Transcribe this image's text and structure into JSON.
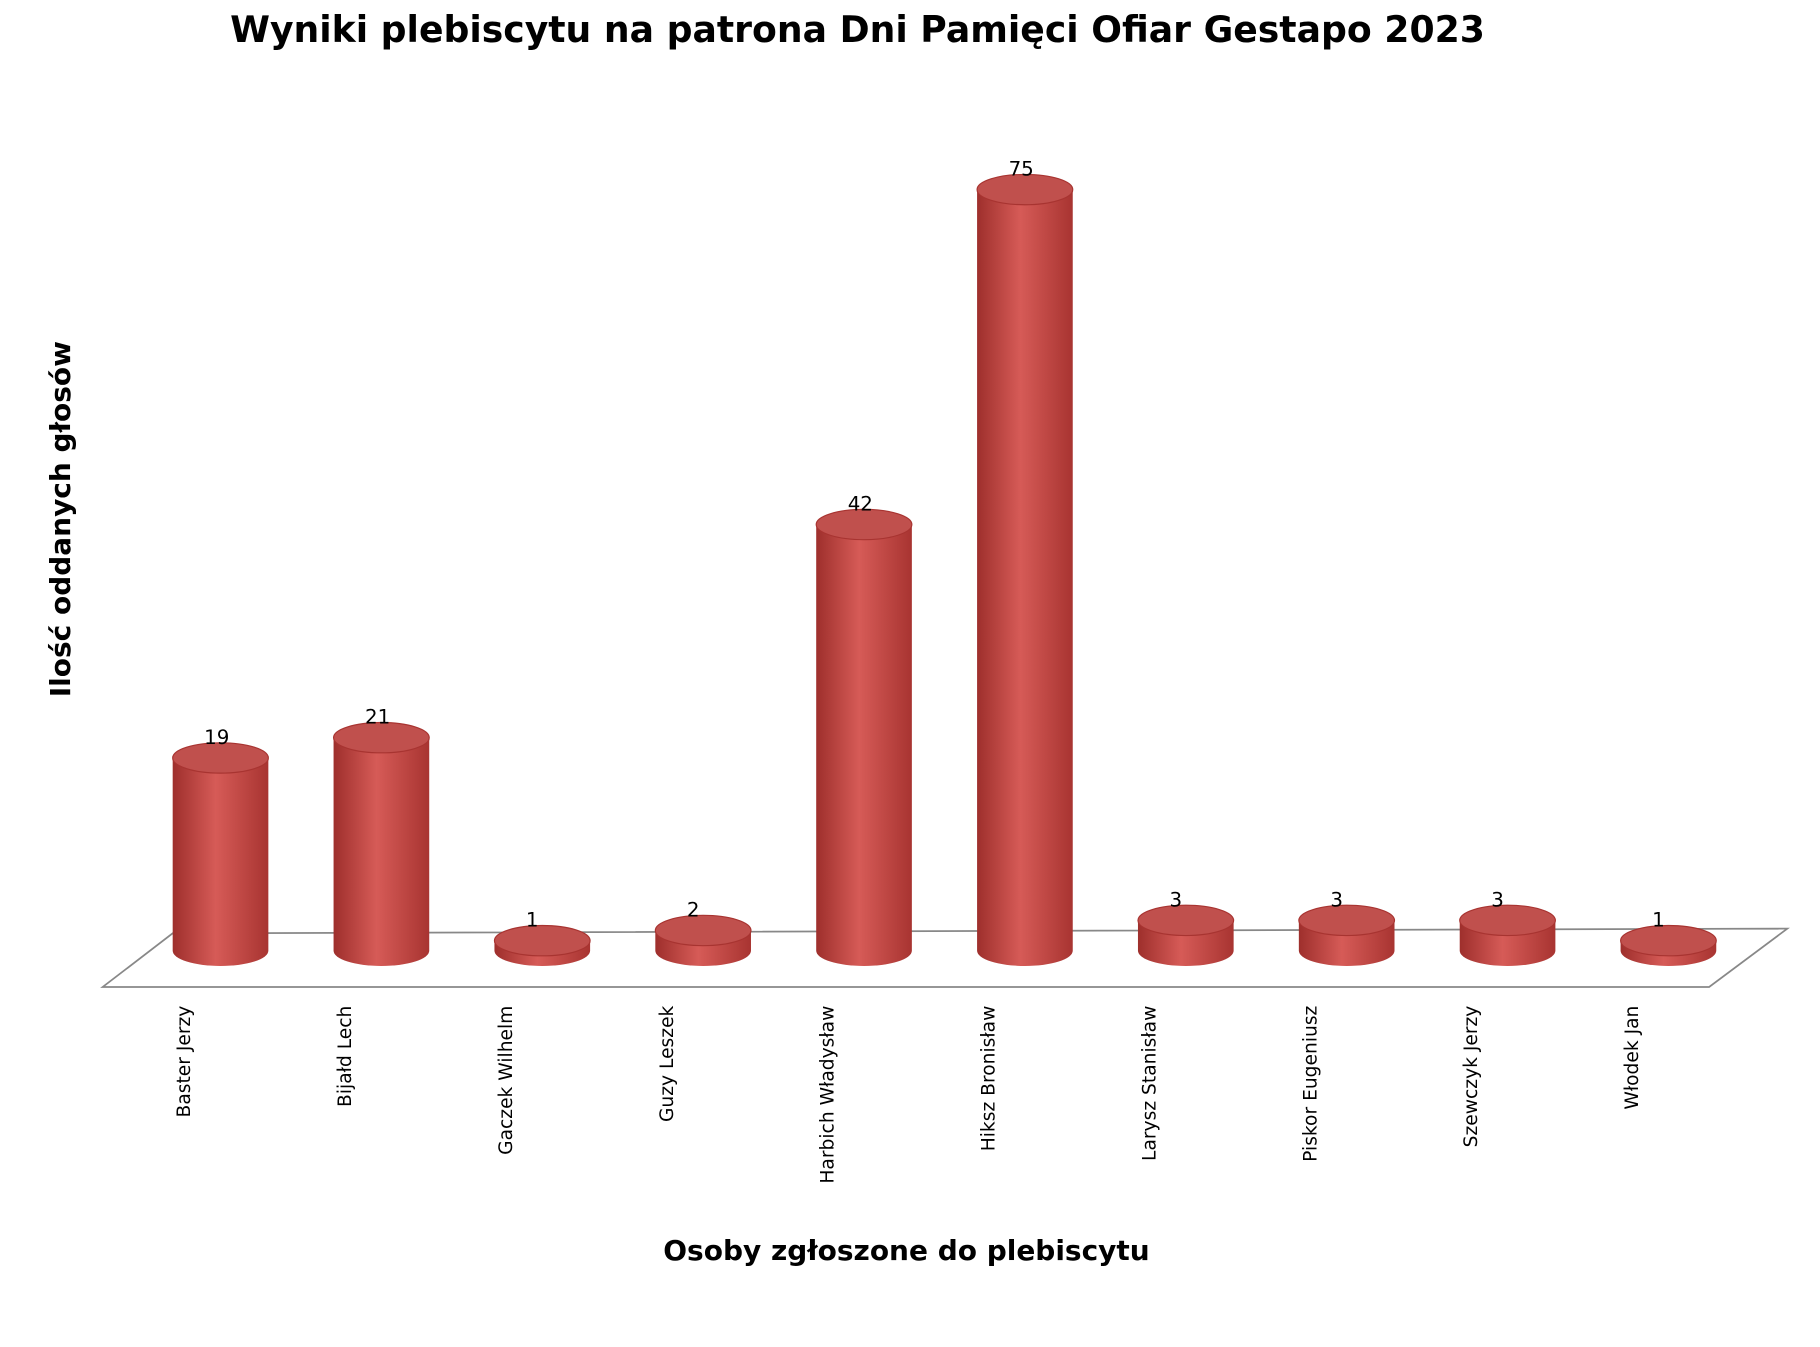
{
  "chart_data": {
    "type": "bar",
    "title": "Wyniki plebiscytu na patrona Dni Pamięci Ofiar Gestapo 2023",
    "x_label": "Osoby zgłoszone do plebiscytu",
    "y_label": "Ilość oddanych głosów",
    "categories": [
      "Baster Jerzy",
      "Bijałd Lech",
      "Gaczek Wilhelm",
      "Guzy Leszek",
      "Harbich Władysław",
      "Hiksz Bronisław",
      "Larysz Stanisław",
      "Piskor Eugeniusz",
      "Szewczyk Jerzy",
      "Włodek Jan"
    ],
    "values": [
      19,
      21,
      1,
      2,
      42,
      75,
      3,
      3,
      3,
      1
    ],
    "color": "#c0504d"
  }
}
